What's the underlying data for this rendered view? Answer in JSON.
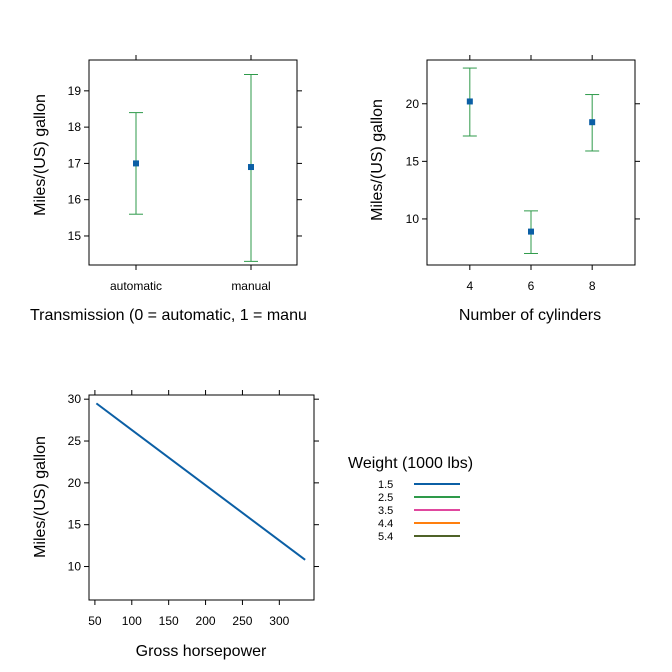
{
  "colors": {
    "point": "#0b5fa5",
    "errorbar": "#2e9a4a",
    "series": [
      "#0b5fa5",
      "#2e9a4a",
      "#e0479e",
      "#ff7f0e",
      "#4f6228"
    ]
  },
  "chart_data": [
    {
      "type": "scatter",
      "subtype": "point-range",
      "xlabel": "Transmission (0 = automatic, 1 = manu",
      "ylabel": "Miles/(US) gallon",
      "categories": [
        "automatic",
        "manual"
      ],
      "values": [
        17.0,
        16.9
      ],
      "lower": [
        15.6,
        14.3
      ],
      "upper": [
        18.4,
        19.45
      ],
      "ylim": [
        14.2,
        19.85
      ],
      "yticks": [
        15,
        16,
        17,
        18,
        19
      ],
      "ytick_labels": [
        "15",
        "16",
        "17",
        "18",
        "19"
      ]
    },
    {
      "type": "scatter",
      "subtype": "point-range",
      "xlabel": "Number of cylinders",
      "ylabel": "Miles/(US) gallon",
      "x": [
        4,
        6,
        8
      ],
      "values": [
        20.2,
        8.9,
        18.4
      ],
      "lower": [
        17.2,
        7.0,
        15.9
      ],
      "upper": [
        23.1,
        10.7,
        20.8
      ],
      "xlim": [
        2.6,
        9.4
      ],
      "xticks": [
        4,
        6,
        8
      ],
      "xtick_labels": [
        "4",
        "6",
        "8"
      ],
      "ylim": [
        6.0,
        23.8
      ],
      "yticks": [
        10,
        15,
        20
      ],
      "ytick_labels": [
        "10",
        "15",
        "20"
      ]
    },
    {
      "type": "line",
      "xlabel": "Gross horsepower",
      "ylabel": "Miles/(US) gallon",
      "xlim": [
        42,
        347
      ],
      "ylim": [
        6,
        30.5
      ],
      "xticks": [
        50,
        100,
        150,
        200,
        250,
        300
      ],
      "xtick_labels": [
        "50",
        "100",
        "150",
        "200",
        "250",
        "300"
      ],
      "yticks": [
        10,
        15,
        20,
        25,
        30
      ],
      "ytick_labels": [
        "10",
        "15",
        "20",
        "25",
        "30"
      ],
      "series": [
        {
          "name": "1.5",
          "x": [
            52,
            335
          ],
          "values": [
            29.5,
            10.8
          ]
        },
        {
          "name": "2.5",
          "x": [],
          "values": []
        },
        {
          "name": "3.5",
          "x": [],
          "values": []
        },
        {
          "name": "4.4",
          "x": [],
          "values": []
        },
        {
          "name": "5.4",
          "x": [],
          "values": []
        }
      ],
      "legend": {
        "title": "Weight (1000 lbs)",
        "placement": "right"
      }
    }
  ]
}
